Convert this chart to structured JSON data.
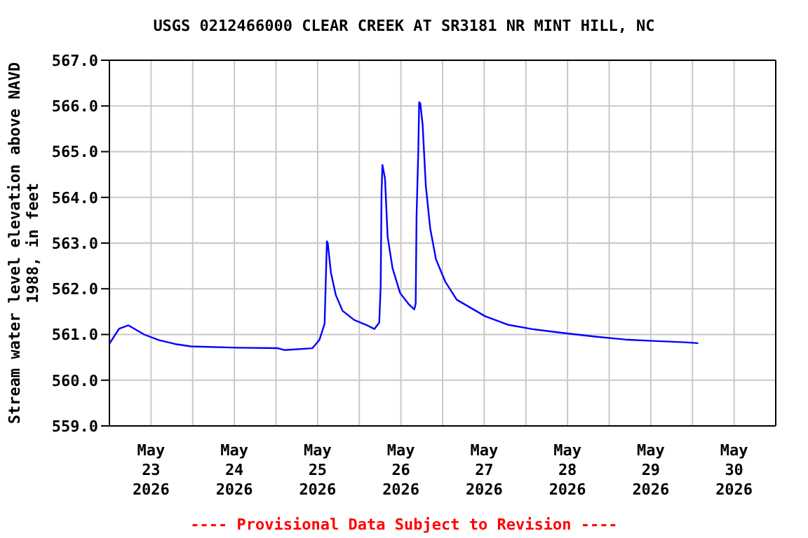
{
  "chart_data": {
    "type": "line",
    "title": "USGS 0212466000 CLEAR CREEK AT SR3181 NR MINT HILL, NC",
    "ylabel": "Stream water level elevation above NAVD 1988, in feet",
    "annotations": [
      "---- Provisional Data Subject to Revision ----"
    ],
    "x": [
      "2026-05-23T00:00",
      "2026-05-23T02:50",
      "2026-05-23T05:30",
      "2026-05-23T10:00",
      "2026-05-23T14:10",
      "2026-05-23T19:00",
      "2026-05-23T23:30",
      "2026-05-24T13:00",
      "2026-05-25T00:30",
      "2026-05-25T02:25",
      "2026-05-25T10:30",
      "2026-05-25T12:30",
      "2026-05-25T14:00",
      "2026-05-25T14:40",
      "2026-05-25T14:55",
      "2026-05-25T15:50",
      "2026-05-25T17:15",
      "2026-05-25T19:10",
      "2026-05-25T22:30",
      "2026-05-26T02:00",
      "2026-05-26T04:20",
      "2026-05-26T05:45",
      "2026-05-26T06:10",
      "2026-05-26T06:25",
      "2026-05-26T06:40",
      "2026-05-26T07:25",
      "2026-05-26T08:10",
      "2026-05-26T09:35",
      "2026-05-26T11:45",
      "2026-05-26T14:10",
      "2026-05-26T15:50",
      "2026-05-26T16:15",
      "2026-05-26T16:30",
      "2026-05-26T17:00",
      "2026-05-26T17:15",
      "2026-05-26T17:35",
      "2026-05-26T18:15",
      "2026-05-26T19:10",
      "2026-05-26T20:25",
      "2026-05-26T22:05",
      "2026-05-27T00:45",
      "2026-05-27T04:05",
      "2026-05-27T12:15",
      "2026-05-27T19:00",
      "2026-05-28T01:40",
      "2026-05-28T11:00",
      "2026-05-28T20:25",
      "2026-05-29T04:35",
      "2026-05-29T12:30",
      "2026-05-29T21:50",
      "2026-05-30T01:40"
    ],
    "series": [
      {
        "color": "#0000ff",
        "values": [
          560.8,
          561.13,
          561.2,
          561.0,
          560.88,
          560.79,
          560.74,
          560.71,
          560.7,
          560.66,
          560.7,
          560.88,
          561.23,
          563.04,
          563.0,
          562.35,
          561.86,
          561.52,
          561.32,
          561.21,
          561.12,
          561.26,
          562.06,
          564.12,
          564.71,
          564.41,
          563.14,
          562.45,
          561.91,
          561.67,
          561.55,
          561.67,
          563.58,
          565.0,
          566.08,
          566.06,
          565.59,
          564.26,
          563.33,
          562.65,
          562.16,
          561.76,
          561.4,
          561.21,
          561.12,
          561.03,
          560.95,
          560.89,
          560.86,
          560.83,
          560.81
        ]
      }
    ],
    "xlim": [
      "2026-05-23",
      "2026-05-31"
    ],
    "xticks": [
      {
        "value": "2026-05-23T12:00",
        "label": "May\n23\n2026"
      },
      {
        "value": "2026-05-24T12:00",
        "label": "May\n24\n2026"
      },
      {
        "value": "2026-05-25T12:00",
        "label": "May\n25\n2026"
      },
      {
        "value": "2026-05-26T12:00",
        "label": "May\n26\n2026"
      },
      {
        "value": "2026-05-27T12:00",
        "label": "May\n27\n2026"
      },
      {
        "value": "2026-05-28T12:00",
        "label": "May\n28\n2026"
      },
      {
        "value": "2026-05-29T12:00",
        "label": "May\n29\n2026"
      },
      {
        "value": "2026-05-30T12:00",
        "label": "May\n30\n2026"
      },
      {
        "value": "2026-05-24",
        "label": null
      },
      {
        "value": "2026-05-25",
        "label": null
      },
      {
        "value": "2026-05-26",
        "label": null
      },
      {
        "value": "2026-05-27",
        "label": null
      },
      {
        "value": "2026-05-28",
        "label": null
      },
      {
        "value": "2026-05-29",
        "label": null
      },
      {
        "value": "2026-05-30",
        "label": null
      }
    ],
    "ylim": [
      559,
      567
    ],
    "yticks": [
      {
        "value": 559,
        "label": "559.0"
      },
      {
        "value": 560,
        "label": "560.0"
      },
      {
        "value": 561,
        "label": "561.0"
      },
      {
        "value": 562,
        "label": "562.0"
      },
      {
        "value": 563,
        "label": "563.0"
      },
      {
        "value": 564,
        "label": "564.0"
      },
      {
        "value": 565,
        "label": "565.0"
      },
      {
        "value": 566,
        "label": "566.0"
      },
      {
        "value": 567,
        "label": "567.0"
      }
    ],
    "grid": true,
    "marker": "none",
    "line_style": "solid"
  }
}
